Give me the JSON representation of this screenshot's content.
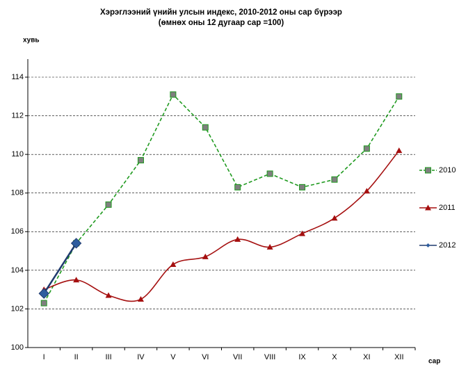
{
  "chart_data": {
    "type": "line",
    "title": "Хэрэглээний үнийн улсын  индекс, 2010-2012 оны  сар бүрээр",
    "subtitle": "(өмнөх оны 12 дугаар сар =100)",
    "y_label": "хувь",
    "x_label": "сар",
    "categories": [
      "I",
      "II",
      "III",
      "IV",
      "V",
      "VI",
      "VII",
      "VIII",
      "IX",
      "X",
      "XI",
      "XII"
    ],
    "series": [
      {
        "name": "2010",
        "color": "#1f9a1f",
        "marker": "square",
        "marker_color": "#7f7f7f",
        "dashed": true,
        "smooth": false,
        "values": [
          102.3,
          105.4,
          107.4,
          109.7,
          113.1,
          111.4,
          108.3,
          109.0,
          108.3,
          108.7,
          110.3,
          113.0
        ]
      },
      {
        "name": "2011",
        "color": "#a50f0f",
        "marker": "triangle",
        "marker_color": "#a50f0f",
        "dashed": false,
        "smooth": true,
        "values": [
          103.0,
          103.5,
          102.7,
          102.5,
          104.3,
          104.7,
          105.6,
          105.2,
          105.9,
          106.7,
          108.1,
          110.2
        ]
      },
      {
        "name": "2012",
        "color": "#1f3a6e",
        "marker": "diamond",
        "marker_color": "#2e5d9e",
        "dashed": false,
        "smooth": false,
        "values": [
          102.8,
          105.4,
          null,
          null,
          null,
          null,
          null,
          null,
          null,
          null,
          null,
          null
        ]
      }
    ],
    "ylim": [
      100,
      114
    ],
    "yticks": [
      100,
      102,
      104,
      106,
      108,
      110,
      112,
      114
    ],
    "grid": true,
    "legend": "right"
  }
}
